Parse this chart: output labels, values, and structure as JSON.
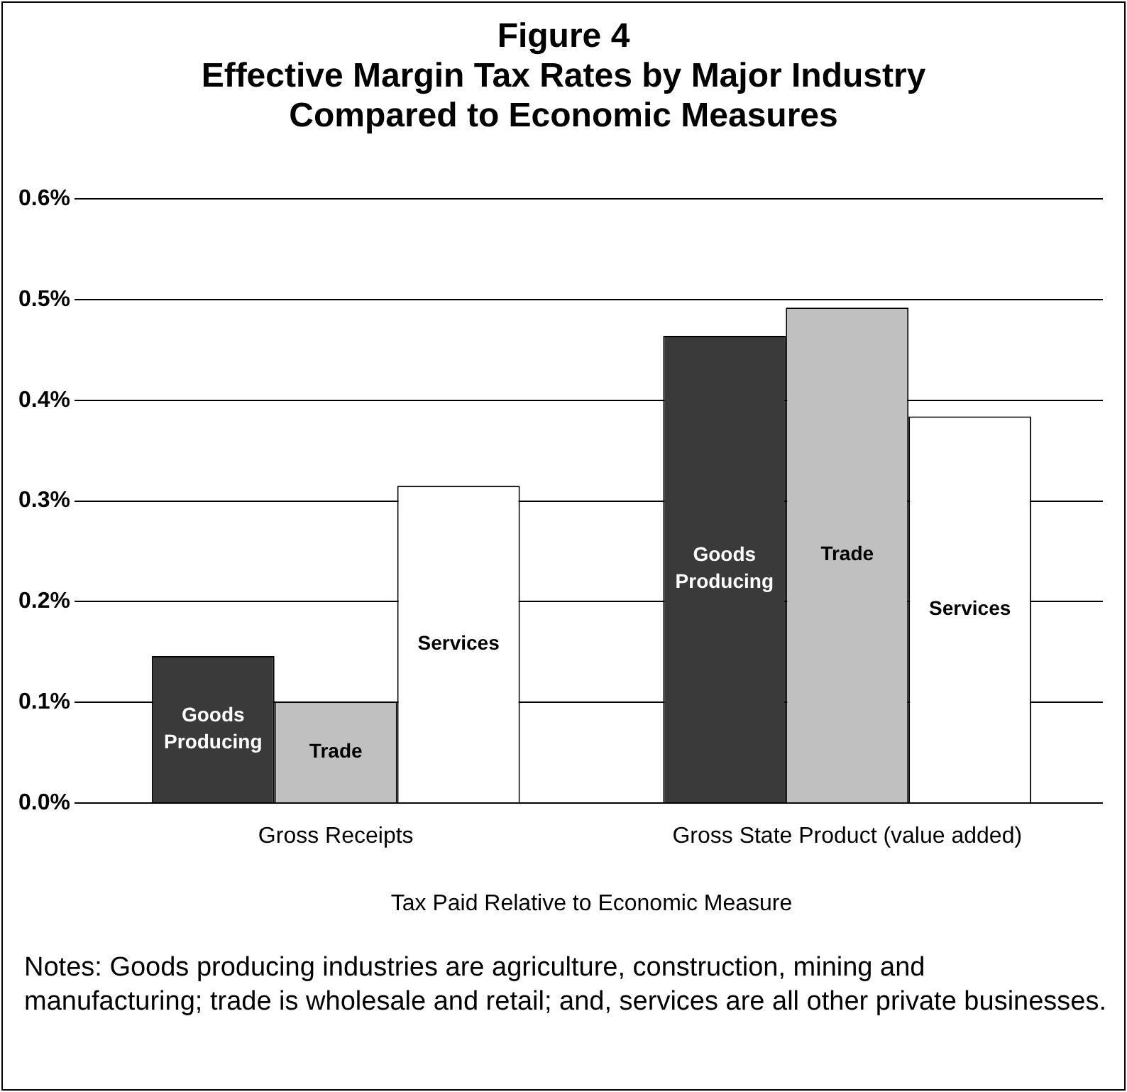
{
  "chart_data": {
    "type": "bar",
    "title": "Figure 4",
    "subtitle": "Effective Margin Tax Rates by Major Industry Compared to Economic Measures",
    "xlabel": "Tax Paid Relative to Economic Measure",
    "categories": [
      "Gross Receipts",
      "Gross State Product (value added)"
    ],
    "series": [
      {
        "name": "Goods Producing",
        "color": "#3a3a3a",
        "values": [
          0.146,
          0.464
        ]
      },
      {
        "name": "Trade",
        "color": "#c0c0c0",
        "values": [
          0.101,
          0.492
        ]
      },
      {
        "name": "Services",
        "color": "#ffffff",
        "values": [
          0.315,
          0.384
        ]
      }
    ],
    "ylim": [
      0,
      0.6
    ],
    "yticks": [
      {
        "value": 0,
        "label": "0.0%"
      },
      {
        "value": 0.1,
        "label": "0.1%"
      },
      {
        "value": 0.2,
        "label": "0.2%"
      },
      {
        "value": 0.3,
        "label": "0.3%"
      },
      {
        "value": 0.4,
        "label": "0.4%"
      },
      {
        "value": 0.5,
        "label": "0.5%"
      },
      {
        "value": 0.6,
        "label": "0.6%"
      }
    ],
    "grid": "y",
    "legend": false,
    "annotations": [
      "Notes: Goods producing industries are agriculture, construction, mining and manufacturing; trade is wholesale and retail; and, services are all other private businesses."
    ]
  }
}
